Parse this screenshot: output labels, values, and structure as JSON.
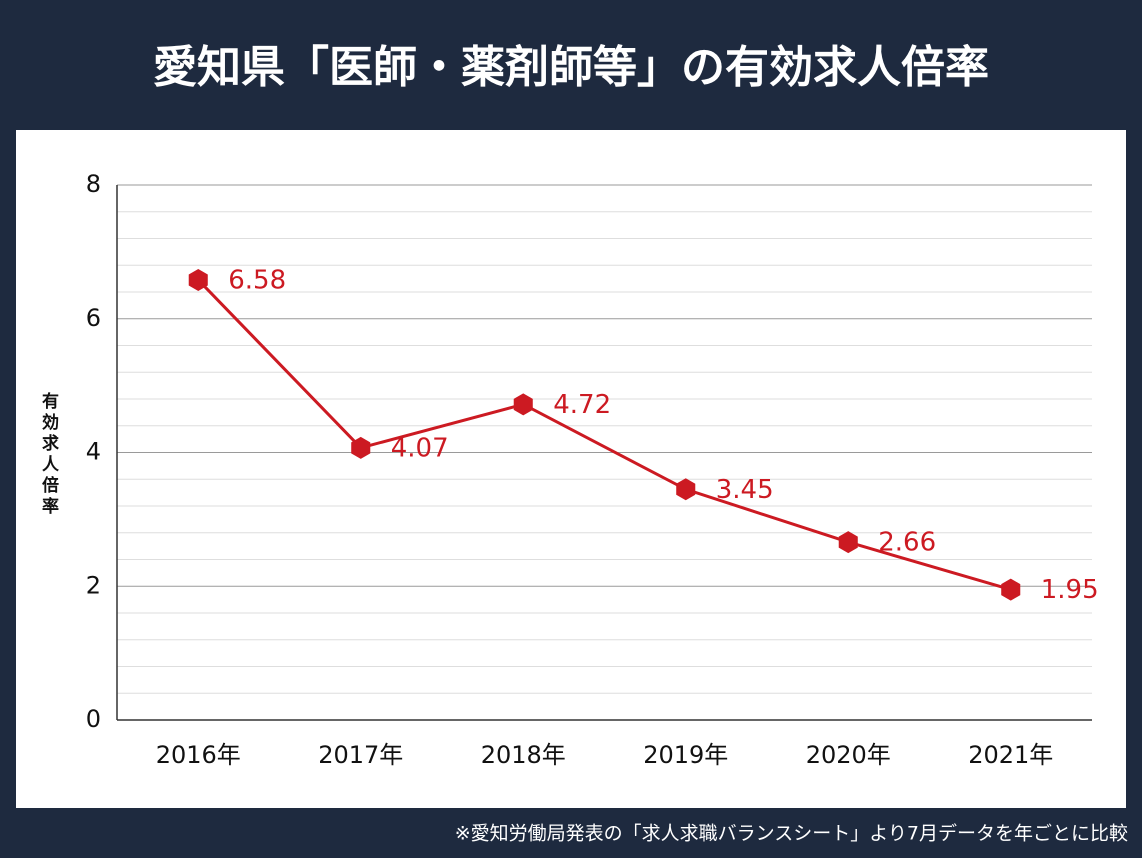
{
  "chart_data": {
    "type": "line",
    "title": "愛知県「医師・薬剤師等」の有効求人倍率",
    "footnote": "※愛知労働局発表の「求人求職バランスシート」より7月データを年ごとに比較",
    "y_label": "有効求人倍率",
    "categories": [
      "2016年",
      "2017年",
      "2018年",
      "2019年",
      "2020年",
      "2021年"
    ],
    "values": [
      6.58,
      4.07,
      4.72,
      3.45,
      2.66,
      1.95
    ],
    "color": "#cc1a22",
    "ylim": [
      0,
      8
    ],
    "yticks": [
      0,
      2,
      4,
      6,
      8
    ],
    "minor_yticks": [
      0.4,
      0.8,
      1.2,
      1.6,
      2.4,
      2.8,
      3.2,
      3.6,
      4.4,
      4.8,
      5.2,
      5.6,
      6.4,
      6.8,
      7.2,
      7.6
    ],
    "grid": true
  }
}
